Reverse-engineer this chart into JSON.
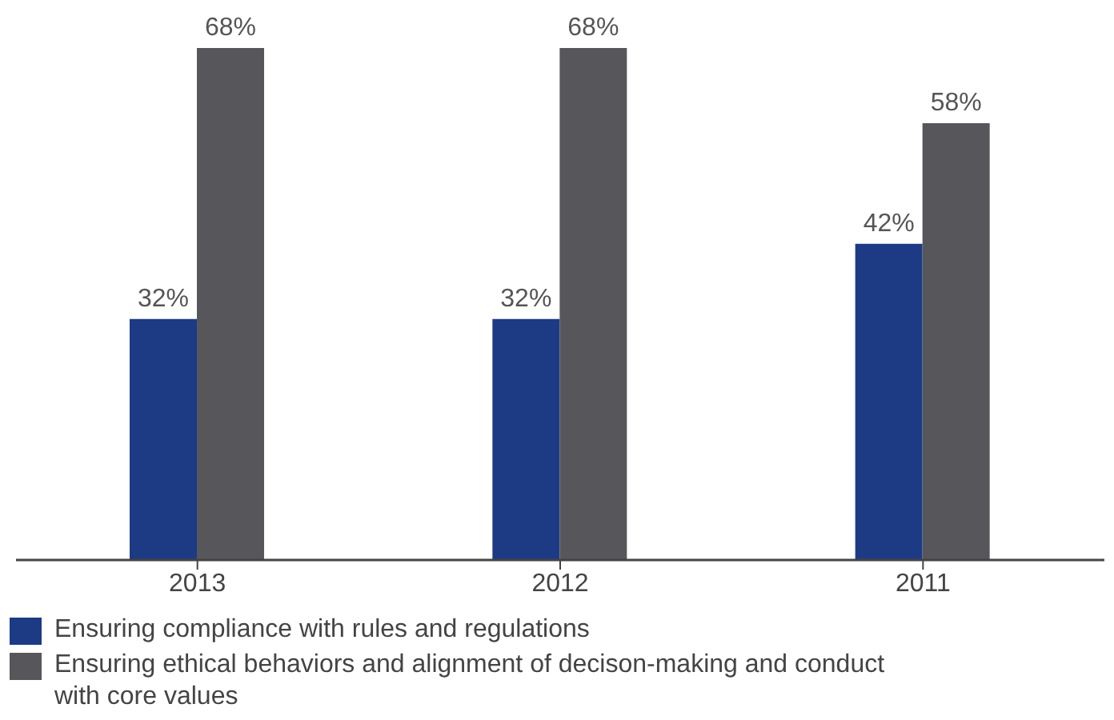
{
  "chart_data": {
    "type": "bar",
    "categories": [
      "2013",
      "2012",
      "2011"
    ],
    "series": [
      {
        "name": "Ensuring compliance with rules and regulations",
        "color": "#1d3a84",
        "values": [
          32,
          32,
          42
        ],
        "value_labels": [
          "32%",
          "32%",
          "42%"
        ]
      },
      {
        "name": "Ensuring ethical behaviors and alignment of decison-making and conduct with core values",
        "color": "#57575b",
        "values": [
          68,
          68,
          58
        ],
        "value_labels": [
          "68%",
          "68%",
          "58%"
        ]
      }
    ],
    "tick_labels": "x",
    "legend": "bottom left"
  }
}
